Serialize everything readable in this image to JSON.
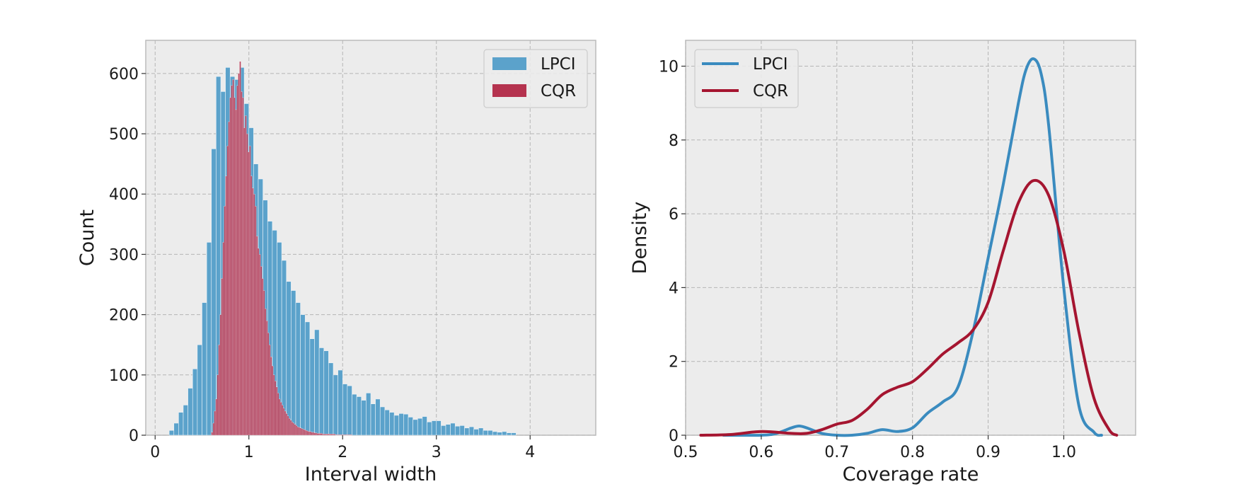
{
  "chart_data": [
    {
      "type": "bar",
      "subtype": "histogram",
      "xlabel": "Interval width",
      "ylabel": "Count",
      "xlim": [
        -0.1,
        4.7
      ],
      "ylim": [
        0,
        655
      ],
      "xticks": [
        "0",
        "1",
        "2",
        "3",
        "4"
      ],
      "xtick_values": [
        0,
        1,
        2,
        3,
        4
      ],
      "yticks": [
        "0",
        "100",
        "200",
        "300",
        "400",
        "500",
        "600"
      ],
      "ytick_values": [
        0,
        100,
        200,
        300,
        400,
        500,
        600
      ],
      "grid": true,
      "legend_position": "top-right",
      "series": [
        {
          "name": "LPCI",
          "color": "#5ba2cb",
          "bin_start": 0.15,
          "bin_width": 0.05,
          "values": [
            8,
            20,
            38,
            50,
            78,
            110,
            150,
            220,
            320,
            475,
            595,
            570,
            610,
            595,
            590,
            610,
            550,
            510,
            450,
            425,
            390,
            355,
            340,
            320,
            290,
            255,
            240,
            220,
            200,
            188,
            160,
            175,
            145,
            140,
            120,
            100,
            108,
            85,
            82,
            68,
            64,
            58,
            70,
            52,
            60,
            47,
            42,
            38,
            33,
            36,
            35,
            30,
            26,
            28,
            31,
            22,
            24,
            24,
            16,
            18,
            20,
            15,
            16,
            12,
            14,
            10,
            12,
            8,
            8,
            6,
            5,
            6,
            4,
            4
          ]
        },
        {
          "name": "CQR",
          "color": "#b5334f",
          "bin_start": 0.6,
          "bin_width": 0.015,
          "values": [
            5,
            20,
            40,
            60,
            100,
            150,
            200,
            260,
            320,
            380,
            430,
            480,
            520,
            560,
            580,
            590,
            560,
            540,
            580,
            600,
            620,
            570,
            560,
            510,
            530,
            500,
            470,
            480,
            430,
            410,
            400,
            380,
            330,
            310,
            300,
            280,
            260,
            240,
            210,
            190,
            170,
            150,
            130,
            115,
            100,
            90,
            80,
            70,
            60,
            55,
            50,
            45,
            40,
            36,
            32,
            28,
            25,
            22,
            20,
            18,
            16,
            14,
            13,
            12,
            11,
            10,
            9,
            8,
            7,
            6,
            6,
            5,
            5,
            4,
            4,
            3,
            3,
            3,
            3,
            2,
            2,
            2,
            2,
            2,
            2,
            2,
            2,
            2,
            1,
            1,
            1,
            1,
            1,
            1,
            1,
            1,
            1,
            1,
            1,
            1
          ]
        }
      ]
    },
    {
      "type": "line",
      "subtype": "density",
      "xlabel": "Coverage rate",
      "ylabel": "Density",
      "xlim": [
        0.5,
        1.095
      ],
      "ylim": [
        0,
        10.7
      ],
      "xticks": [
        "0.5",
        "0.6",
        "0.7",
        "0.8",
        "0.9",
        "1.0"
      ],
      "xtick_values": [
        0.5,
        0.6,
        0.7,
        0.8,
        0.9,
        1.0
      ],
      "yticks": [
        "0",
        "2",
        "4",
        "6",
        "8",
        "10"
      ],
      "ytick_values": [
        0,
        2,
        4,
        6,
        8,
        10
      ],
      "grid": true,
      "legend_position": "top-left",
      "series": [
        {
          "name": "LPCI",
          "color": "#3a8bbf",
          "x": [
            0.55,
            0.6,
            0.62,
            0.64,
            0.65,
            0.66,
            0.68,
            0.7,
            0.72,
            0.74,
            0.76,
            0.78,
            0.8,
            0.82,
            0.84,
            0.86,
            0.88,
            0.9,
            0.92,
            0.94,
            0.95,
            0.96,
            0.97,
            0.98,
            1.0,
            1.02,
            1.04,
            1.05
          ],
          "y": [
            0,
            0,
            0.05,
            0.2,
            0.25,
            0.2,
            0.05,
            0,
            0,
            0.05,
            0.15,
            0.1,
            0.2,
            0.6,
            0.9,
            1.3,
            2.8,
            4.8,
            6.8,
            9.0,
            9.9,
            10.2,
            9.8,
            8.4,
            4.0,
            0.8,
            0.08,
            0
          ]
        },
        {
          "name": "CQR",
          "color": "#a51530",
          "x": [
            0.52,
            0.56,
            0.6,
            0.64,
            0.66,
            0.68,
            0.7,
            0.72,
            0.74,
            0.76,
            0.78,
            0.8,
            0.82,
            0.84,
            0.86,
            0.88,
            0.9,
            0.92,
            0.94,
            0.96,
            0.98,
            1.0,
            1.02,
            1.04,
            1.06,
            1.07
          ],
          "y": [
            0,
            0.02,
            0.1,
            0.05,
            0.05,
            0.15,
            0.3,
            0.4,
            0.7,
            1.1,
            1.3,
            1.45,
            1.8,
            2.2,
            2.5,
            2.85,
            3.6,
            5.0,
            6.3,
            6.9,
            6.5,
            5.0,
            2.8,
            1.0,
            0.15,
            0
          ]
        }
      ]
    }
  ]
}
